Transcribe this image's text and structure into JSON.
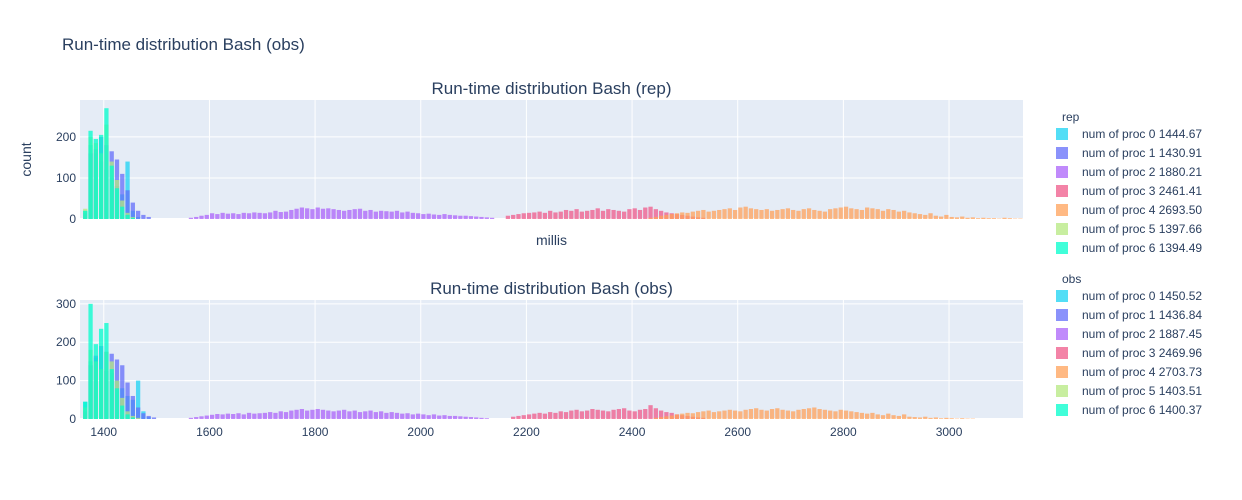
{
  "figure": {
    "title": "Run-time distribution Bash (obs)"
  },
  "chart_data": [
    {
      "type": "histogram",
      "title": "Run-time distribution Bash (rep)",
      "xlabel": "millis",
      "ylabel": "count",
      "xlim": [
        1355,
        3140
      ],
      "ylim": [
        0,
        290
      ],
      "yticks": [
        0,
        100,
        200
      ],
      "show_xtick_labels": false,
      "bin_width": 10,
      "legend": {
        "title": "rep",
        "placement": "right-top"
      },
      "series": [
        {
          "name": "num of proc 0",
          "mean_label": "1444.67",
          "color": "#19d3f3",
          "bins_start": 1360,
          "values": [
            20,
            180,
            160,
            140,
            120,
            100,
            80,
            60,
            140,
            20,
            5
          ]
        },
        {
          "name": "num of proc 1",
          "mean_label": "1430.91",
          "color": "#636efa",
          "bins_start": 1360,
          "values": [
            15,
            160,
            170,
            200,
            180,
            165,
            145,
            110,
            70,
            40,
            20,
            10,
            5
          ]
        },
        {
          "name": "num of proc 2",
          "mean_label": "1880.21",
          "color": "#ab63fa",
          "bins_start": 1560,
          "values": [
            3,
            5,
            8,
            10,
            14,
            12,
            15,
            13,
            14,
            12,
            15,
            14,
            16,
            15,
            14,
            16,
            20,
            17,
            18,
            22,
            25,
            28,
            26,
            24,
            28,
            25,
            26,
            24,
            22,
            20,
            22,
            24,
            25,
            20,
            22,
            18,
            20,
            19,
            18,
            20,
            16,
            18,
            15,
            14,
            12,
            13,
            11,
            10,
            12,
            10,
            9,
            8,
            8,
            7,
            6,
            5,
            4,
            3
          ]
        },
        {
          "name": "num of proc 3",
          "mean_label": "2461.41",
          "color": "#ef5a8a",
          "bins_start": 2160,
          "values": [
            8,
            10,
            12,
            14,
            15,
            16,
            18,
            15,
            20,
            16,
            18,
            22,
            20,
            24,
            18,
            20,
            22,
            26,
            20,
            24,
            22,
            20,
            18,
            24,
            26,
            22,
            28,
            30,
            24,
            20,
            16,
            14,
            12,
            10,
            8,
            6,
            4,
            3
          ]
        },
        {
          "name": "num of proc 4",
          "mean_label": "2693.50",
          "color": "#ffa15a",
          "bins_start": 2430,
          "values": [
            3,
            5,
            8,
            10,
            12,
            14,
            16,
            15,
            18,
            20,
            22,
            18,
            20,
            22,
            24,
            26,
            22,
            28,
            30,
            26,
            24,
            22,
            24,
            20,
            22,
            24,
            26,
            22,
            20,
            24,
            26,
            22,
            20,
            18,
            24,
            26,
            28,
            30,
            26,
            24,
            22,
            28,
            26,
            24,
            20,
            24,
            22,
            18,
            20,
            16,
            14,
            12,
            10,
            14,
            8,
            6,
            10,
            5,
            4,
            6,
            3,
            4,
            2,
            3,
            2,
            2,
            1,
            3,
            2,
            1,
            1
          ]
        },
        {
          "name": "num of proc 5",
          "mean_label": "1397.66",
          "color": "#b6e880",
          "bins_start": 1360,
          "values": [
            25,
            200,
            185,
            160,
            230,
            140,
            95,
            45,
            15,
            5
          ]
        },
        {
          "name": "num of proc 6",
          "mean_label": "1394.49",
          "color": "#00fecc",
          "bins_start": 1360,
          "values": [
            20,
            215,
            195,
            205,
            270,
            130,
            75,
            30,
            10,
            3
          ]
        }
      ]
    },
    {
      "type": "histogram",
      "title": "Run-time distribution Bash (obs)",
      "xlabel": "",
      "ylabel": "",
      "xlim": [
        1355,
        3140
      ],
      "ylim": [
        0,
        310
      ],
      "yticks": [
        0,
        100,
        200,
        300
      ],
      "xticks": [
        1400,
        1600,
        1800,
        2000,
        2200,
        2400,
        2600,
        2800,
        3000
      ],
      "show_xtick_labels": true,
      "bin_width": 10,
      "legend": {
        "title": "obs",
        "placement": "right-bottom"
      },
      "series": [
        {
          "name": "num of proc 0",
          "mean_label": "1450.52",
          "color": "#19d3f3",
          "bins_start": 1360,
          "values": [
            45,
            150,
            160,
            130,
            125,
            120,
            100,
            80,
            60,
            50,
            100,
            20,
            5
          ]
        },
        {
          "name": "num of proc 1",
          "mean_label": "1436.84",
          "color": "#636efa",
          "bins_start": 1360,
          "values": [
            20,
            140,
            165,
            190,
            175,
            170,
            155,
            140,
            95,
            60,
            30,
            15,
            8,
            4
          ]
        },
        {
          "name": "num of proc 2",
          "mean_label": "1887.45",
          "color": "#ab63fa",
          "bins_start": 1560,
          "values": [
            3,
            5,
            7,
            9,
            11,
            13,
            12,
            14,
            13,
            15,
            12,
            16,
            14,
            15,
            16,
            18,
            16,
            20,
            18,
            22,
            24,
            26,
            22,
            24,
            26,
            24,
            22,
            20,
            22,
            24,
            20,
            22,
            18,
            20,
            22,
            18,
            20,
            16,
            18,
            16,
            14,
            15,
            12,
            14,
            12,
            10,
            12,
            9,
            10,
            8,
            8,
            7,
            6,
            5,
            4,
            3,
            2
          ]
        },
        {
          "name": "num of proc 3",
          "mean_label": "2469.96",
          "color": "#ef5a8a",
          "bins_start": 2170,
          "values": [
            6,
            8,
            10,
            12,
            14,
            16,
            14,
            18,
            16,
            20,
            18,
            22,
            24,
            20,
            22,
            26,
            24,
            22,
            20,
            24,
            26,
            28,
            22,
            20,
            24,
            26,
            36,
            28,
            22,
            18,
            16,
            12,
            10,
            8,
            6,
            4,
            3
          ]
        },
        {
          "name": "num of proc 4",
          "mean_label": "2703.73",
          "color": "#ffa15a",
          "bins_start": 2440,
          "values": [
            3,
            5,
            7,
            9,
            12,
            14,
            16,
            15,
            18,
            20,
            22,
            18,
            20,
            22,
            24,
            22,
            20,
            24,
            26,
            28,
            24,
            22,
            26,
            28,
            24,
            22,
            20,
            24,
            26,
            28,
            30,
            26,
            24,
            22,
            20,
            24,
            22,
            20,
            18,
            16,
            14,
            16,
            12,
            10,
            14,
            10,
            8,
            12,
            6,
            5,
            4,
            6,
            3,
            4,
            2,
            3,
            2,
            1,
            2,
            1,
            1
          ]
        },
        {
          "name": "num of proc 5",
          "mean_label": "1403.51",
          "color": "#b6e880",
          "bins_start": 1360,
          "values": [
            30,
            180,
            150,
            130,
            175,
            150,
            100,
            55,
            20,
            8,
            3
          ]
        },
        {
          "name": "num of proc 6",
          "mean_label": "1400.37",
          "color": "#00fecc",
          "bins_start": 1360,
          "values": [
            45,
            300,
            195,
            235,
            250,
            130,
            80,
            35,
            12,
            4
          ]
        }
      ]
    }
  ]
}
